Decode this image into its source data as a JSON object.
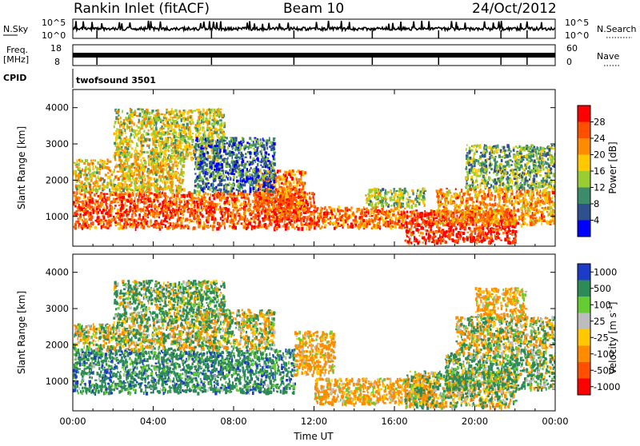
{
  "header": {
    "station": "Rankin Inlet (fitACF)",
    "beam": "Beam 10",
    "date": "24/Oct/2012"
  },
  "top_panels": {
    "nsky_label": "N.Sky",
    "nsky_ticks": [
      "10^5",
      "10^0"
    ],
    "nsearch_label": "N.Search",
    "nsearch_ticks": [
      "10^5",
      "10^0"
    ],
    "freq_label_1": "Freq.",
    "freq_label_2": "[MHz]",
    "freq_ticks": [
      "18",
      "8"
    ],
    "nave_label": "Nave",
    "nave_ticks": [
      "60",
      "0"
    ],
    "cpid_label": "CPID",
    "cpid_value": "twofsound 3501"
  },
  "chart_data": [
    {
      "type": "heatmap",
      "name": "power",
      "xlabel": "",
      "ylabel": "Slant Range [km]",
      "x_ticks": [
        "00:00",
        "04:00",
        "08:00",
        "12:00",
        "16:00",
        "20:00",
        "00:00"
      ],
      "y_ticks": [
        "1000",
        "2000",
        "3000",
        "4000"
      ],
      "xlim_hours": [
        0,
        24
      ],
      "ylim_km": [
        180,
        4500
      ],
      "colorbar_label": "Power [dB]",
      "colorbar_ticks": [
        "28",
        "24",
        "20",
        "16",
        "12",
        "8",
        "4"
      ],
      "colorbar_colors": [
        "#ff0000",
        "#ff4f00",
        "#ff8c00",
        "#ffc800",
        "#9acd32",
        "#3c8c6c",
        "#2f4f8f",
        "#0000ff"
      ],
      "regions": [
        {
          "t0": 0.0,
          "t1": 12.0,
          "r0": 700,
          "r1": 1700,
          "level": 26
        },
        {
          "t0": 0.0,
          "t1": 5.5,
          "r0": 1700,
          "r1": 2600,
          "level": 18
        },
        {
          "t0": 2.0,
          "t1": 7.5,
          "r0": 2600,
          "r1": 4000,
          "level": 16
        },
        {
          "t0": 9.0,
          "t1": 11.5,
          "r0": 1000,
          "r1": 2300,
          "level": 24
        },
        {
          "t0": 12.0,
          "t1": 16.5,
          "r0": 700,
          "r1": 1300,
          "level": 24
        },
        {
          "t0": 14.5,
          "t1": 17.5,
          "r0": 1300,
          "r1": 1800,
          "level": 14
        },
        {
          "t0": 16.5,
          "t1": 22.0,
          "r0": 300,
          "r1": 1200,
          "level": 28
        },
        {
          "t0": 18.0,
          "t1": 24.0,
          "r0": 800,
          "r1": 1800,
          "level": 22
        },
        {
          "t0": 19.5,
          "t1": 24.0,
          "r0": 1800,
          "r1": 3000,
          "level": 12
        },
        {
          "t0": 6.0,
          "t1": 10.0,
          "r0": 1700,
          "r1": 3200,
          "level": 8
        }
      ]
    },
    {
      "type": "heatmap",
      "name": "velocity",
      "xlabel": "Time UT",
      "ylabel": "Slant Range [km]",
      "x_ticks": [
        "00:00",
        "04:00",
        "08:00",
        "12:00",
        "16:00",
        "20:00",
        "00:00"
      ],
      "y_ticks": [
        "1000",
        "2000",
        "3000",
        "4000"
      ],
      "xlim_hours": [
        0,
        24
      ],
      "ylim_km": [
        180,
        4500
      ],
      "colorbar_label": "Velocity [m s^-1]",
      "colorbar_ticks": [
        "1000",
        "500",
        "100",
        "25",
        "-25",
        "-100",
        "-500",
        "-1000"
      ],
      "colorbar_colors": [
        "#1c3cc8",
        "#2e8b57",
        "#66cc33",
        "#bdbdbd",
        "#ffc800",
        "#ff8c00",
        "#ff4f00",
        "#ff0000"
      ],
      "regions": [
        {
          "t0": 0.0,
          "t1": 11.0,
          "r0": 700,
          "r1": 1900,
          "level": 300
        },
        {
          "t0": 0.0,
          "t1": 6.0,
          "r0": 1900,
          "r1": 2600,
          "level": 0
        },
        {
          "t0": 2.0,
          "t1": 7.5,
          "r0": 2600,
          "r1": 3800,
          "level": 150
        },
        {
          "t0": 11.0,
          "t1": 13.0,
          "r0": 1200,
          "r1": 2400,
          "level": -200
        },
        {
          "t0": 12.0,
          "t1": 18.0,
          "r0": 400,
          "r1": 1100,
          "level": -200
        },
        {
          "t0": 16.5,
          "t1": 22.0,
          "r0": 300,
          "r1": 1300,
          "level": 0
        },
        {
          "t0": 18.5,
          "t1": 24.0,
          "r0": 800,
          "r1": 1800,
          "level": 150
        },
        {
          "t0": 19.0,
          "t1": 24.0,
          "r0": 1800,
          "r1": 2800,
          "level": 0
        },
        {
          "t0": 20.0,
          "t1": 22.5,
          "r0": 2800,
          "r1": 3600,
          "level": -200
        },
        {
          "t0": 6.0,
          "t1": 10.0,
          "r0": 1900,
          "r1": 3000,
          "level": 0
        }
      ]
    }
  ]
}
